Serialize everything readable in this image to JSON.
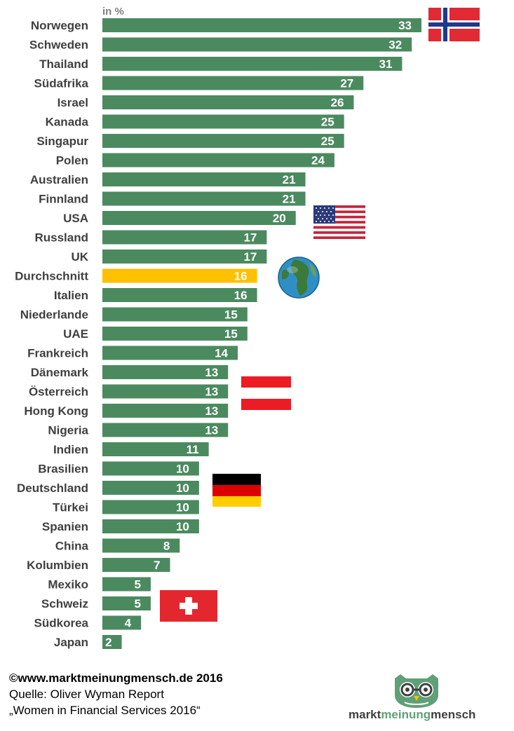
{
  "chart_data": {
    "type": "bar",
    "orientation": "horizontal",
    "unit_label": "in %",
    "categories": [
      "Norwegen",
      "Schweden",
      "Thailand",
      "Südafrika",
      "Israel",
      "Kanada",
      "Singapur",
      "Polen",
      "Australien",
      "Finnland",
      "USA",
      "Russland",
      "UK",
      "Durchschnitt",
      "Italien",
      "Niederlande",
      "UAE",
      "Frankreich",
      "Dänemark",
      "Österreich",
      "Hong Kong",
      "Nigeria",
      "Indien",
      "Brasilien",
      "Deutschland",
      "Türkei",
      "Spanien",
      "China",
      "Kolumbien",
      "Mexiko",
      "Schweiz",
      "Südkorea",
      "Japan"
    ],
    "values": [
      33,
      32,
      31,
      27,
      26,
      25,
      25,
      24,
      21,
      21,
      20,
      17,
      17,
      16,
      16,
      15,
      15,
      14,
      13,
      13,
      13,
      13,
      11,
      10,
      10,
      10,
      10,
      8,
      7,
      5,
      5,
      4,
      2
    ],
    "highlight_category": "Durchschnitt",
    "colors": {
      "bar": "#4b8a5f",
      "highlight": "#ffc000",
      "value_text": "#ffffff",
      "category_text": "#3f3f3f"
    },
    "xlim": [
      0,
      33
    ],
    "grid": false,
    "legend": "none"
  },
  "flags": [
    {
      "category": "Norwegen",
      "icon": "norway-flag-icon"
    },
    {
      "category": "USA",
      "icon": "usa-flag-icon"
    },
    {
      "category": "Durchschnitt",
      "icon": "globe-icon"
    },
    {
      "category": "Österreich",
      "icon": "austria-flag-icon"
    },
    {
      "category": "Deutschland",
      "icon": "germany-flag-icon"
    },
    {
      "category": "Schweiz",
      "icon": "switzerland-flag-icon"
    }
  ],
  "footer": {
    "copyright": "©www.marktmeinungmensch.de 2016",
    "source_line": "Quelle: Oliver Wyman Report",
    "report_title": "„Women in Financial Services 2016“"
  },
  "logo": {
    "icon": "owl-logo-icon",
    "part1": "markt",
    "part2": "meinung",
    "part3": "mensch"
  }
}
